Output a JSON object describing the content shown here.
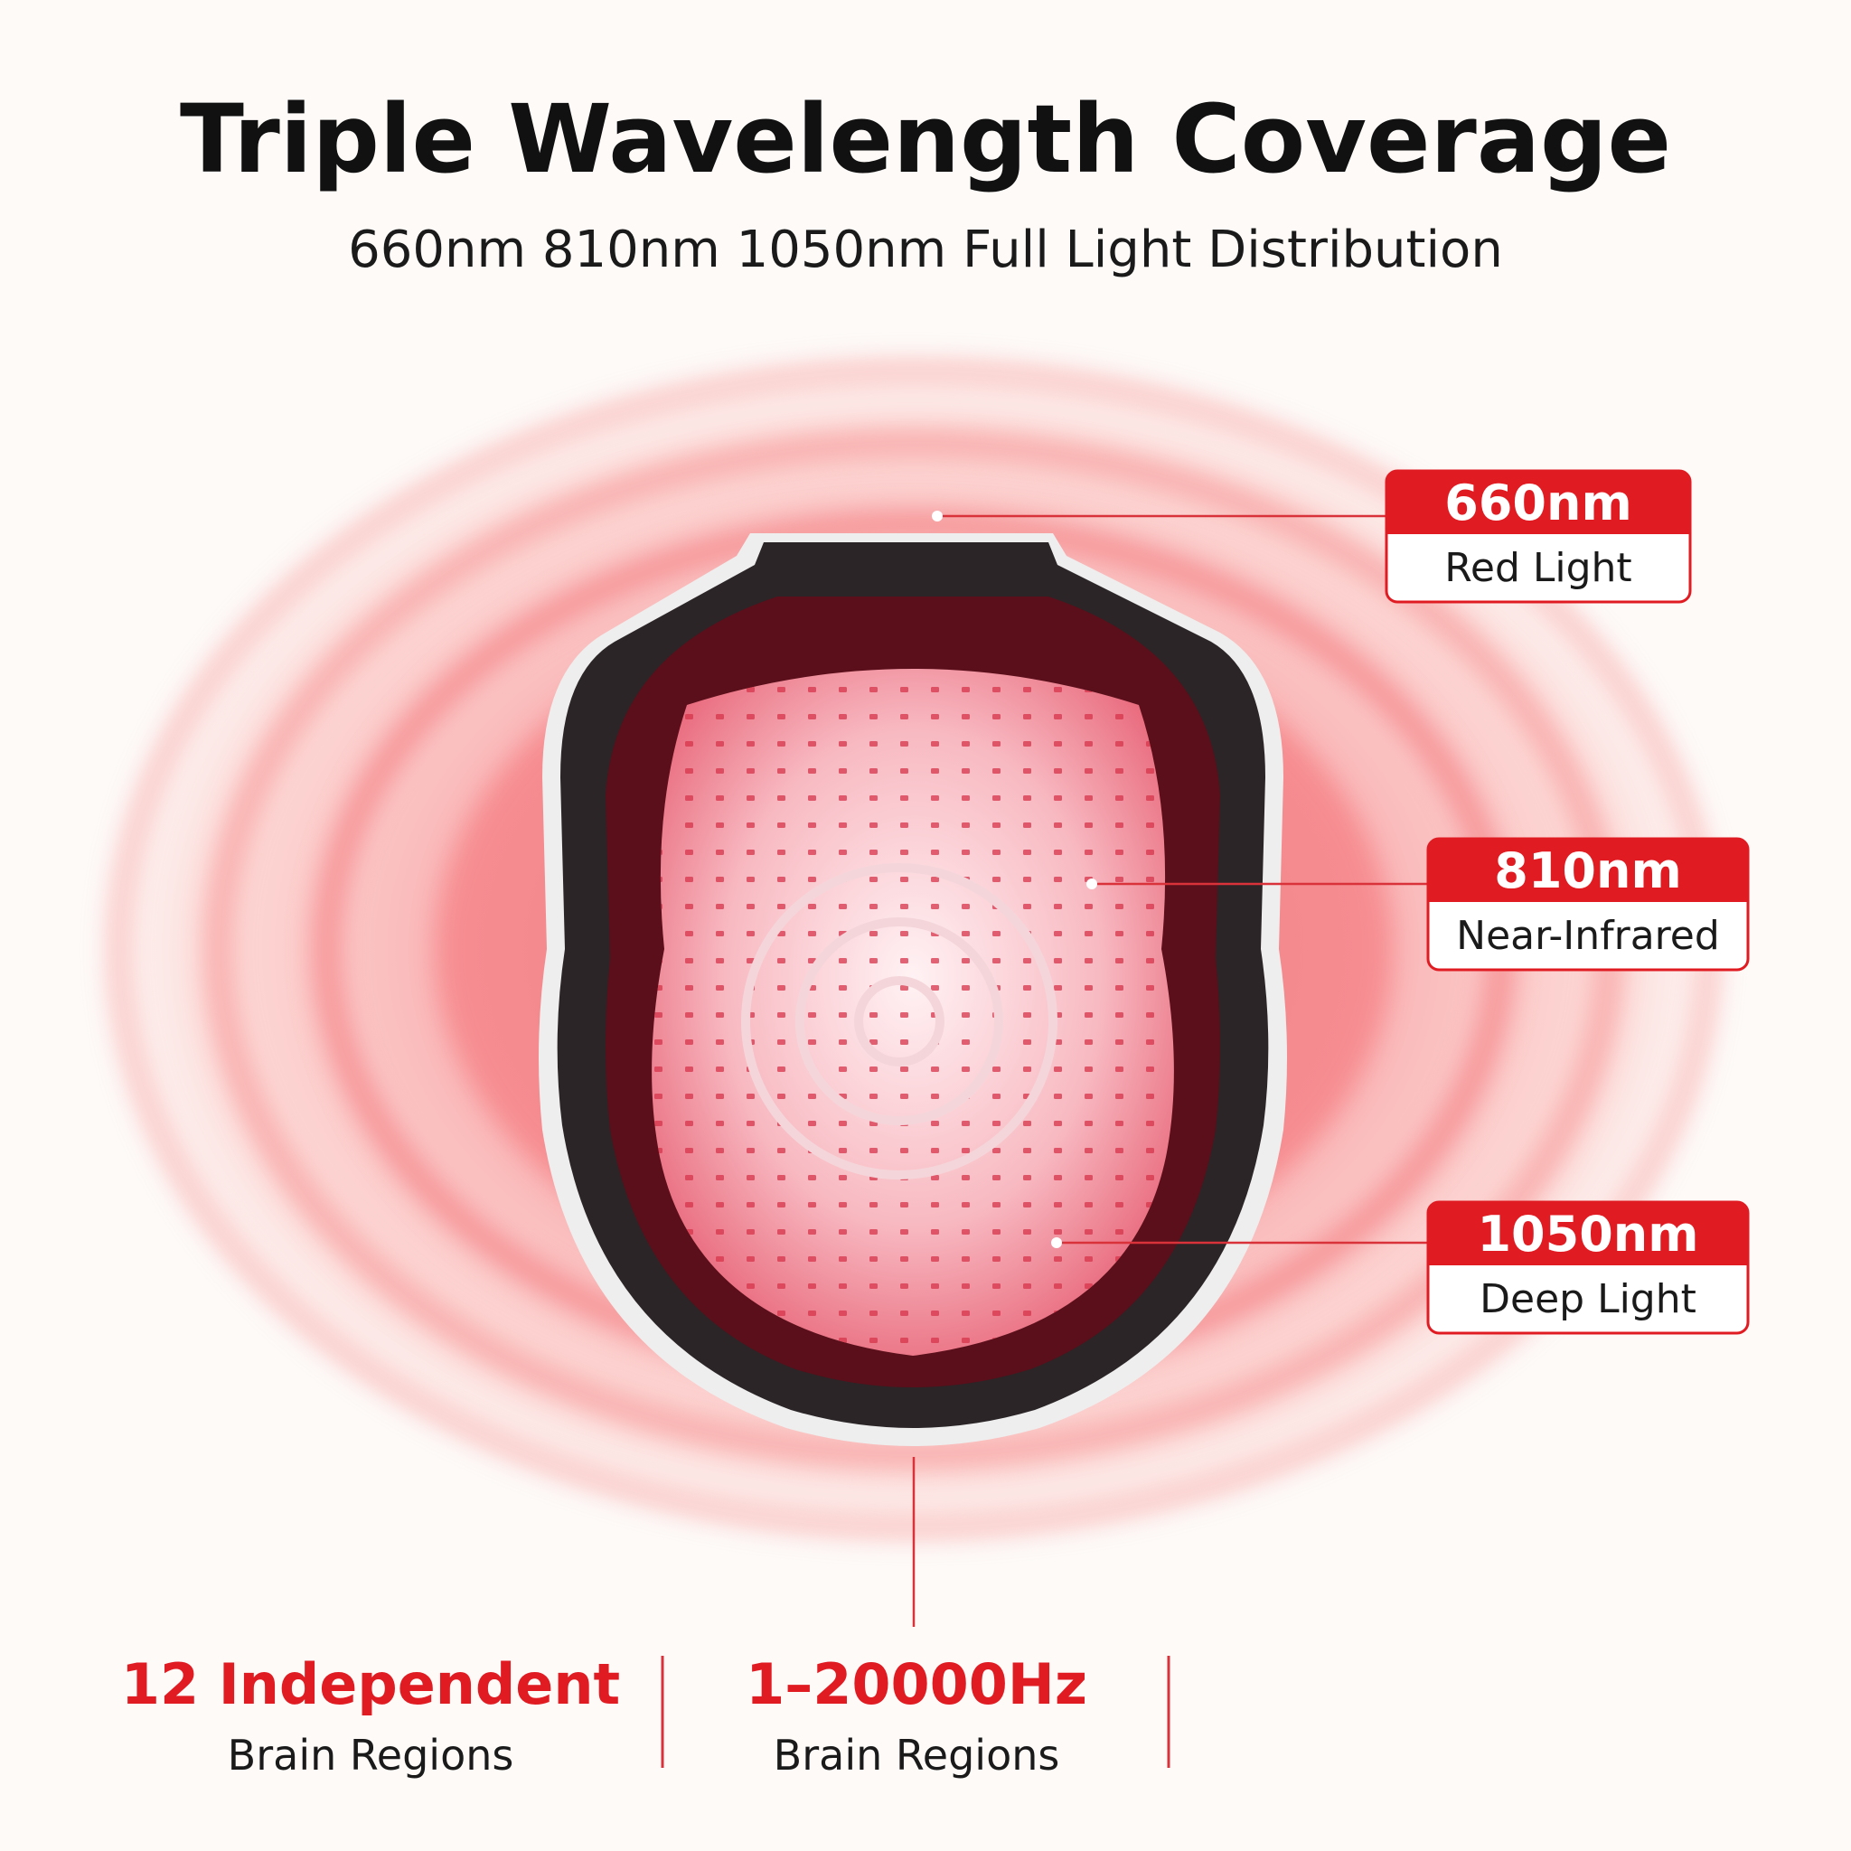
{
  "header": {
    "title": "Triple Wavelength Coverage",
    "subtitle": "660nm 810nm 1050nm Full Light Distribution"
  },
  "callouts": [
    {
      "wavelength": "660nm",
      "label": "Red Light"
    },
    {
      "wavelength": "810nm",
      "label": "Near-Infrared"
    },
    {
      "wavelength": "1050nm",
      "label": "Deep Light"
    }
  ],
  "stats": [
    {
      "value": "12 Independent",
      "label": "Brain Regions"
    },
    {
      "value": "1–20000Hz",
      "label": "Brain Regions"
    }
  ]
}
